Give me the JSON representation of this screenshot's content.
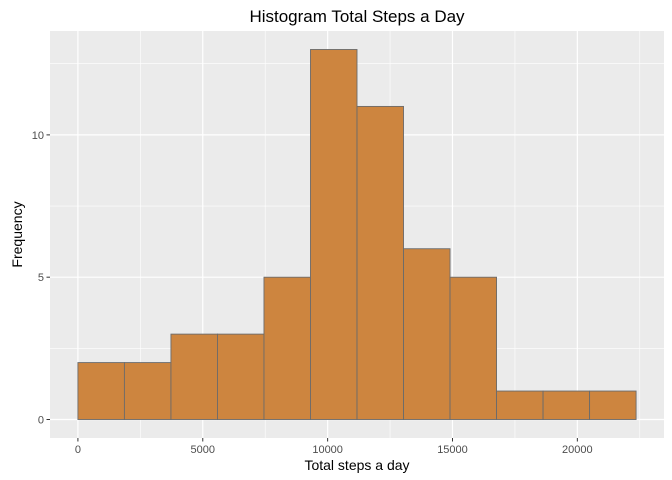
{
  "chart_data": {
    "type": "bar",
    "subtype": "histogram",
    "title": "Histogram Total Steps a Day",
    "xlabel": "Total steps a day",
    "ylabel": "Frequency",
    "bins": [
      {
        "start": 0,
        "end": 1862.7,
        "count": 2
      },
      {
        "start": 1862.7,
        "end": 3725.4,
        "count": 2
      },
      {
        "start": 3725.4,
        "end": 5588.1,
        "count": 3
      },
      {
        "start": 5588.1,
        "end": 7450.8,
        "count": 3
      },
      {
        "start": 7450.8,
        "end": 9313.5,
        "count": 5
      },
      {
        "start": 9313.5,
        "end": 11176.2,
        "count": 13
      },
      {
        "start": 11176.2,
        "end": 13038.9,
        "count": 11
      },
      {
        "start": 13038.9,
        "end": 14901.6,
        "count": 6
      },
      {
        "start": 14901.6,
        "end": 16764.3,
        "count": 5
      },
      {
        "start": 16764.3,
        "end": 18627.0,
        "count": 1
      },
      {
        "start": 18627.0,
        "end": 20489.7,
        "count": 1
      },
      {
        "start": 20489.7,
        "end": 22352.4,
        "count": 1
      }
    ],
    "xlim": [
      -1117.6,
      23470.0
    ],
    "ylim": [
      -0.65,
      13.65
    ],
    "x_ticks": [
      0,
      5000,
      10000,
      15000,
      20000
    ],
    "x_tick_labels": [
      "0",
      "5000",
      "10000",
      "15000",
      "20000"
    ],
    "y_ticks": [
      0,
      5,
      10
    ],
    "y_tick_labels": [
      "0",
      "5",
      "10"
    ],
    "grid": true,
    "legend": "none",
    "colors": {
      "bar_fill": "#cd853f",
      "bar_outline": "#6b6b6b",
      "panel_background": "#ebebeb",
      "grid_major": "#ffffff"
    }
  }
}
